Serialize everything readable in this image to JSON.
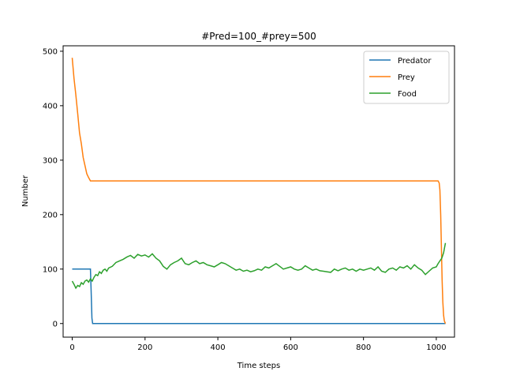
{
  "chart_data": {
    "type": "line",
    "title": "#Pred=100_#prey=500",
    "xlabel": "Time steps",
    "ylabel": "Number",
    "xlim": [
      -25,
      1050
    ],
    "ylim": [
      -25,
      510
    ],
    "xticks": [
      0,
      200,
      400,
      600,
      800,
      1000
    ],
    "yticks": [
      0,
      100,
      200,
      300,
      400,
      500
    ],
    "grid": false,
    "legend": "top-right",
    "series": [
      {
        "name": "Predator",
        "color": "#1f77b4",
        "x": [
          0,
          50,
          52,
          54,
          56,
          1000,
          1025
        ],
        "y": [
          100,
          100,
          60,
          10,
          0,
          0,
          0
        ]
      },
      {
        "name": "Prey",
        "color": "#ff7f0e",
        "x": [
          0,
          5,
          10,
          15,
          20,
          25,
          30,
          35,
          40,
          45,
          50,
          55,
          1000,
          1005,
          1008,
          1010,
          1012,
          1014,
          1016,
          1018,
          1020,
          1022,
          1025
        ],
        "y": [
          488,
          450,
          420,
          385,
          350,
          330,
          305,
          290,
          275,
          268,
          262,
          262,
          262,
          262,
          258,
          245,
          200,
          140,
          80,
          40,
          15,
          5,
          0
        ]
      },
      {
        "name": "Food",
        "color": "#2ca02c",
        "x": [
          0,
          5,
          10,
          15,
          20,
          25,
          30,
          35,
          40,
          45,
          50,
          55,
          60,
          65,
          70,
          75,
          80,
          85,
          90,
          95,
          100,
          110,
          120,
          130,
          140,
          150,
          160,
          170,
          180,
          190,
          200,
          210,
          220,
          230,
          240,
          250,
          260,
          270,
          280,
          290,
          300,
          310,
          320,
          330,
          340,
          350,
          360,
          370,
          380,
          390,
          400,
          410,
          420,
          430,
          440,
          450,
          460,
          470,
          480,
          490,
          500,
          510,
          520,
          530,
          540,
          550,
          560,
          570,
          580,
          590,
          600,
          610,
          620,
          630,
          640,
          650,
          660,
          670,
          680,
          690,
          700,
          710,
          720,
          730,
          740,
          750,
          760,
          770,
          780,
          790,
          800,
          810,
          820,
          830,
          840,
          850,
          860,
          870,
          880,
          890,
          900,
          910,
          920,
          930,
          940,
          950,
          960,
          970,
          980,
          990,
          1000,
          1005,
          1010,
          1015,
          1020,
          1025
        ],
        "y": [
          78,
          72,
          65,
          70,
          68,
          75,
          72,
          78,
          80,
          76,
          82,
          78,
          85,
          90,
          88,
          95,
          92,
          98,
          100,
          96,
          102,
          105,
          112,
          115,
          118,
          122,
          125,
          120,
          127,
          124,
          126,
          122,
          128,
          120,
          115,
          105,
          100,
          108,
          112,
          115,
          120,
          110,
          108,
          112,
          115,
          110,
          112,
          108,
          106,
          104,
          108,
          112,
          110,
          106,
          102,
          98,
          100,
          96,
          98,
          95,
          97,
          100,
          98,
          104,
          102,
          106,
          110,
          105,
          100,
          102,
          104,
          100,
          98,
          100,
          106,
          102,
          98,
          100,
          97,
          96,
          95,
          94,
          100,
          97,
          100,
          102,
          98,
          100,
          96,
          100,
          98,
          100,
          102,
          98,
          104,
          96,
          94,
          100,
          102,
          98,
          104,
          102,
          106,
          100,
          108,
          102,
          98,
          90,
          96,
          102,
          104,
          110,
          115,
          120,
          130,
          148
        ]
      }
    ]
  }
}
